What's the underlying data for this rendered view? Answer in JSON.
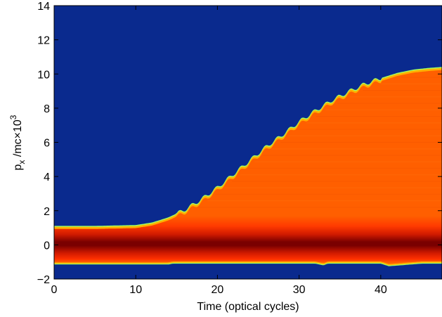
{
  "chart_data": {
    "type": "heatmap",
    "title": "",
    "xlabel": "Time (optical cycles)",
    "ylabel_base": "p",
    "ylabel_sub": "x",
    "ylabel_mid": " /mc",
    "ylabel_times": "×",
    "ylabel_pow_base": "10",
    "ylabel_pow_exp": "3",
    "xlim": [
      0,
      47.5
    ],
    "ylim": [
      -2,
      14
    ],
    "xticks": [
      "0",
      "10",
      "20",
      "30",
      "40"
    ],
    "yticks": [
      "−2",
      "0",
      "2",
      "4",
      "6",
      "8",
      "10",
      "12",
      "14"
    ],
    "xtick_values": [
      0,
      10,
      20,
      30,
      40
    ],
    "ytick_values": [
      -2,
      0,
      2,
      4,
      6,
      8,
      10,
      12,
      14
    ],
    "grid": false,
    "colormap": "jet",
    "colors": {
      "background": "#0a2a8e",
      "core": "#7a0000",
      "mid": "#d01a00",
      "bulk": "#ff5f00",
      "edge": "#ffb000",
      "fringe": "#a0ff60"
    },
    "upper_edge": {
      "x": [
        0,
        5,
        10,
        12,
        14,
        16,
        18,
        20,
        22,
        24,
        26,
        28,
        30,
        32,
        34,
        36,
        38,
        40,
        42,
        44,
        46,
        47.5
      ],
      "y": [
        1.05,
        1.05,
        1.1,
        1.25,
        1.55,
        2.0,
        2.6,
        3.3,
        4.1,
        4.9,
        5.7,
        6.4,
        7.15,
        7.8,
        8.4,
        8.9,
        9.35,
        9.7,
        10.0,
        10.2,
        10.3,
        10.35
      ]
    },
    "lower_edge": {
      "x": [
        0,
        5,
        10,
        14,
        14.5,
        24,
        32,
        33,
        33.5,
        34,
        40,
        41,
        45,
        47.5
      ],
      "y": [
        -1.1,
        -1.1,
        -1.1,
        -1.1,
        -1.05,
        -1.05,
        -1.05,
        -1.15,
        -1.05,
        -1.05,
        -1.05,
        -1.2,
        -1.05,
        -1.05
      ]
    },
    "bands": {
      "core": [
        -0.35,
        0.35
      ],
      "mid": [
        -0.8,
        0.8
      ],
      "inner_bulk_top": 1.7
    }
  }
}
